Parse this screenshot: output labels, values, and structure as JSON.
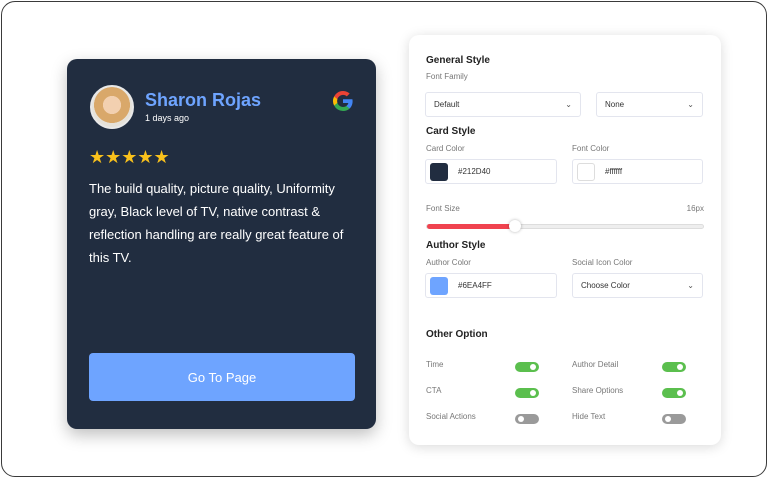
{
  "card": {
    "author": "Sharon Rojas",
    "time": "1 days ago",
    "rating": 5,
    "stars": "★★★★★",
    "review": "The build quality, picture quality, Uniformity gray, Black level of TV, native contrast & reflection handling are really great feature of this TV.",
    "cta": "Go To Page",
    "social_icon": "google-icon",
    "bg": "#212D40",
    "author_color": "#6EA4FF"
  },
  "panel": {
    "general": {
      "title": "General Style",
      "font_family_label": "Font Family",
      "font_family": "Default",
      "font_weight": "None"
    },
    "card_style": {
      "title": "Card Style",
      "card_color_label": "Card Color",
      "card_color": "#212D40",
      "font_color_label": "Font Color",
      "font_color": "#ffffff",
      "font_size_label": "Font Size",
      "font_size": "16px",
      "font_size_fraction": 0.32
    },
    "author_style": {
      "title": "Author Style",
      "author_color_label": "Author Color",
      "author_color": "#6EA4FF",
      "social_icon_label": "Social Icon Color",
      "social_icon_value": "Choose Color"
    },
    "other": {
      "title": "Other Option",
      "options": [
        {
          "label": "Time",
          "on": true
        },
        {
          "label": "Author Detail",
          "on": true
        },
        {
          "label": "CTA",
          "on": true
        },
        {
          "label": "Share Options",
          "on": true
        },
        {
          "label": "Social Actions",
          "on": false
        },
        {
          "label": "Hide Text",
          "on": false
        }
      ]
    }
  }
}
